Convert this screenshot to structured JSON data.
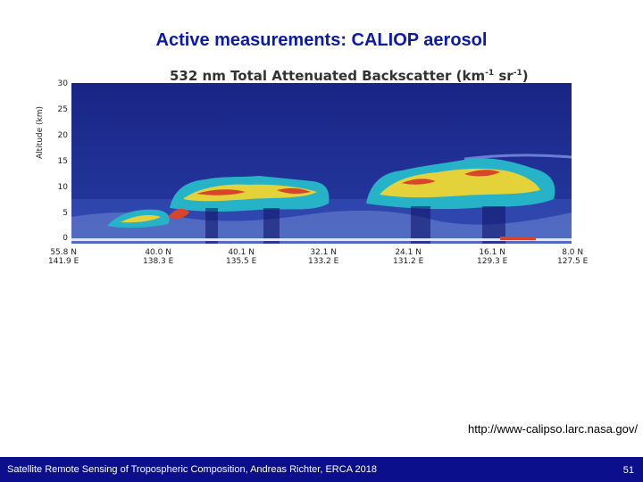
{
  "slide": {
    "title": "Active measurements: CALIOP aerosol",
    "source_url": "http://www-calipso.larc.nasa.gov/",
    "footer_text": "Satellite Remote Sensing of Tropospheric Composition, Andreas Richter, ERCA  2018",
    "page_number": "51"
  },
  "figure": {
    "title": "532 nm Total Attenuated Backscatter (km",
    "title_exp1": "-1",
    "title_mid": " sr",
    "title_exp2": "-1",
    "title_end": ")",
    "ylabel": "Altitude (km)",
    "yticks": [
      "30",
      "25",
      "20",
      "15",
      "10",
      "5",
      "0"
    ],
    "xticks": [
      {
        "lat": "55.8 N",
        "lon": "141.9 E"
      },
      {
        "lat": "40.0 N",
        "lon": "138.3 E"
      },
      {
        "lat": "40.1 N",
        "lon": "135.5 E"
      },
      {
        "lat": "32.1 N",
        "lon": "133.2 E"
      },
      {
        "lat": "24.1 N",
        "lon": "131.2 E"
      },
      {
        "lat": "16.1 N",
        "lon": "129.3 E"
      },
      {
        "lat": "8.0 N",
        "lon": "127.5 E"
      }
    ],
    "colors": {
      "background": "#1d2a8c",
      "cloud_low": "#27b3c7",
      "cloud_mid": "#e3d23a",
      "cloud_high": "#d9452a",
      "aerosol": "#7a8fd6"
    }
  }
}
